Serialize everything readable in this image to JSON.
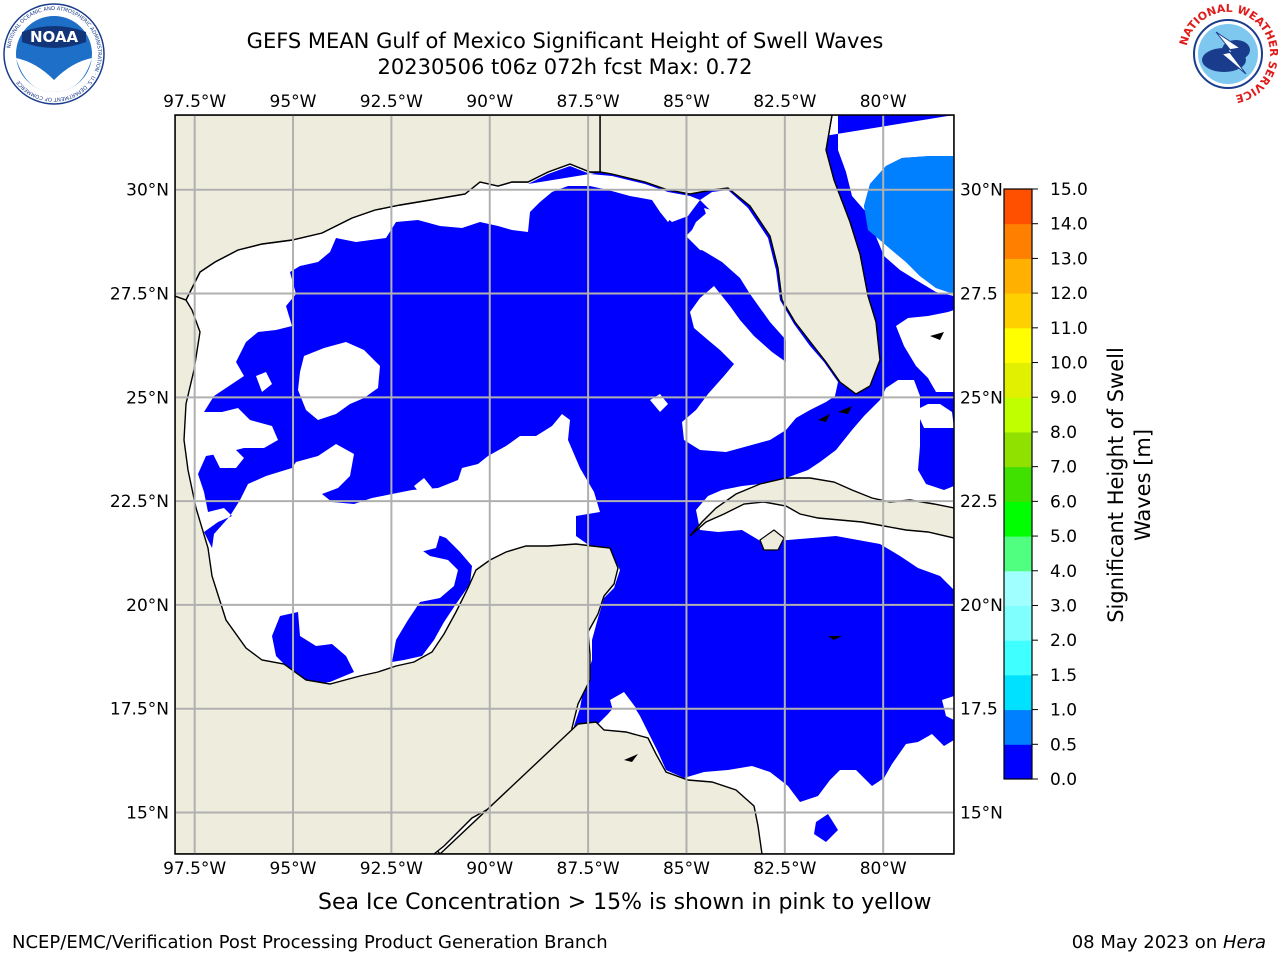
{
  "title": {
    "line1": "GEFS MEAN Gulf of Mexico Significant Height of Swell Waves",
    "line2": "20230506 t06z 072h fcst   Max: 0.72"
  },
  "map": {
    "longitude_labels": [
      "97.5°W",
      "95°W",
      "92.5°W",
      "90°W",
      "87.5°W",
      "85°W",
      "82.5°W",
      "80°W"
    ],
    "longitude_values": [
      -97.5,
      -95,
      -92.5,
      -90,
      -87.5,
      -85,
      -82.5,
      -80
    ],
    "latitude_labels_left": [
      "30°N",
      "27.5°N",
      "25°N",
      "22.5°N",
      "20°N",
      "17.5°N",
      "15°N"
    ],
    "latitude_labels_right": [
      "30°N",
      "27.5",
      "25°N",
      "22.5",
      "20°N",
      "17.5",
      "15°N"
    ],
    "latitude_values": [
      30,
      27.5,
      25,
      22.5,
      20,
      17.5,
      15
    ],
    "extent": {
      "lon_min": -98,
      "lon_max": -78.2,
      "lat_min": 14,
      "lat_max": 31.8
    },
    "colors": {
      "land": "#eeeddd",
      "ocean_white": "#ffffff",
      "grid": "#b0b0b0"
    }
  },
  "colorbar": {
    "label": "Significant Height of Swell Waves [m]",
    "label_line1": "Significant Height of Swell",
    "label_line2": "Waves [m]",
    "ticks": [
      "15.0",
      "14.0",
      "13.0",
      "12.0",
      "11.0",
      "10.0",
      "9.0",
      "8.0",
      "7.0",
      "6.0",
      "5.0",
      "4.0",
      "3.0",
      "2.0",
      "1.5",
      "1.0",
      "0.5",
      "0.0"
    ],
    "colors": [
      "#0000ff",
      "#0080ff",
      "#00e0ff",
      "#40ffff",
      "#80ffff",
      "#a0ffff",
      "#50ff80",
      "#00ff00",
      "#40e000",
      "#90e000",
      "#c0ff00",
      "#e0f000",
      "#ffff00",
      "#ffd000",
      "#ffb000",
      "#ff8000",
      "#ff5000",
      "#ff2000",
      "#ff0000"
    ]
  },
  "subtitle": "Sea Ice Concentration > 15% is shown in pink to yellow",
  "footer": {
    "left": "NCEP/EMC/Verification Post Processing Product Generation Branch",
    "right_prefix": "08 May 2023 on ",
    "right_host": "Hera"
  },
  "logos": {
    "noaa_text": "NOAA",
    "noaa_ring": "NATIONAL OCEANIC AND ATMOSPHERIC ADMINISTRATION · U.S. DEPARTMENT OF COMMERCE",
    "nws_ring": "NATIONAL WEATHER SERVICE"
  }
}
